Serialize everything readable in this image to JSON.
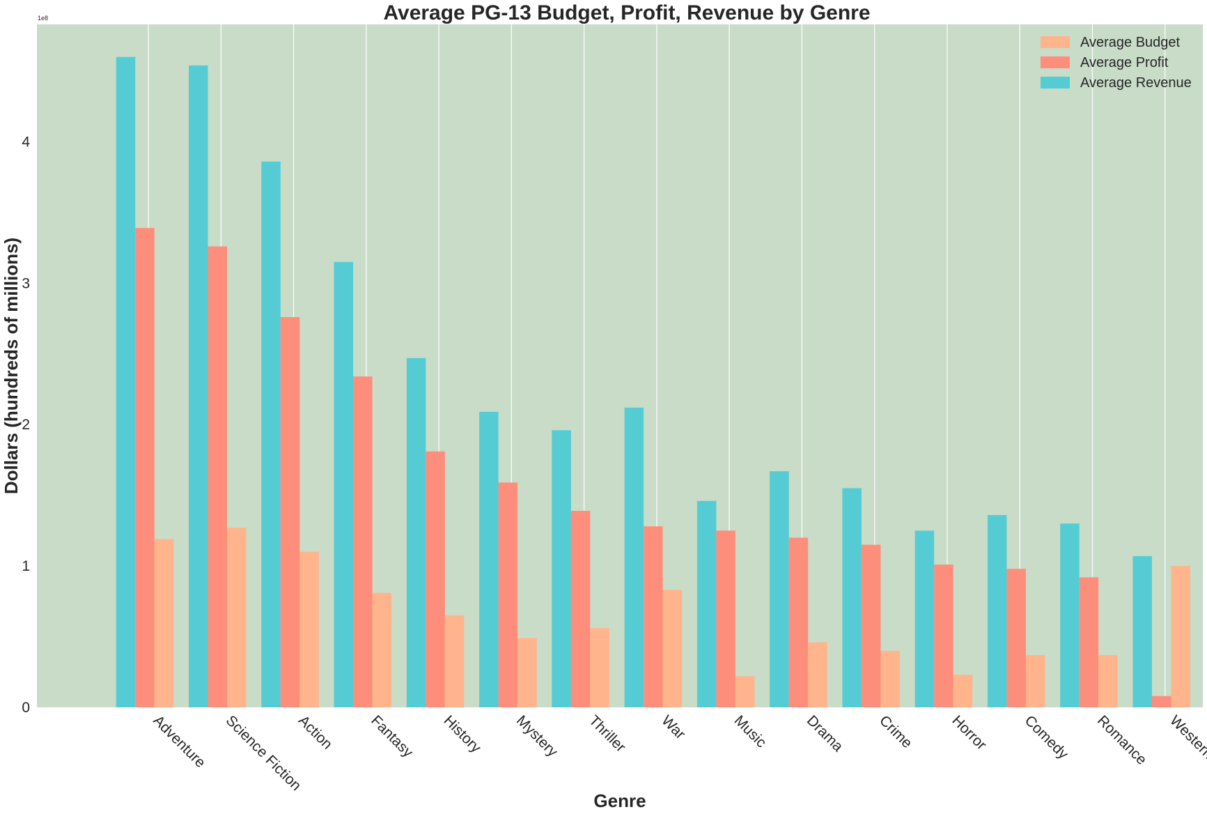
{
  "chart_data": {
    "type": "bar",
    "title": "Average PG-13 Budget, Profit, Revenue by Genre",
    "xlabel": "Genre",
    "ylabel": "Dollars (hundreds of millions)",
    "y_scale_note": "1e8",
    "ylim": [
      0,
      4.83
    ],
    "yticks": [
      "0",
      "1",
      "2",
      "3",
      "4"
    ],
    "grid": "vertical",
    "legend_position": "top-right",
    "categories": [
      "Adventure",
      "Science Fiction",
      "Action",
      "Fantasy",
      "History",
      "Mystery",
      "Thriller",
      "War",
      "Music",
      "Drama",
      "Crime",
      "Horror",
      "Comedy",
      "Romance",
      "Western"
    ],
    "series": [
      {
        "name": "Average Revenue",
        "color": "#55ccd4",
        "values": [
          4.6,
          4.54,
          3.86,
          3.15,
          2.47,
          2.09,
          1.96,
          2.12,
          1.46,
          1.67,
          1.55,
          1.25,
          1.36,
          1.3,
          1.07
        ]
      },
      {
        "name": "Average Profit",
        "color": "#fd8e7c",
        "values": [
          3.39,
          3.26,
          2.76,
          2.34,
          1.81,
          1.59,
          1.39,
          1.28,
          1.25,
          1.2,
          1.15,
          1.01,
          0.98,
          0.92,
          0.08
        ]
      },
      {
        "name": "Average Budget",
        "color": "#ffb48c",
        "values": [
          1.19,
          1.27,
          1.1,
          0.81,
          0.65,
          0.49,
          0.56,
          0.83,
          0.22,
          0.46,
          0.4,
          0.23,
          0.37,
          0.37,
          1.0
        ]
      }
    ],
    "legend": [
      "Average Budget",
      "Average Profit",
      "Average Revenue"
    ]
  }
}
